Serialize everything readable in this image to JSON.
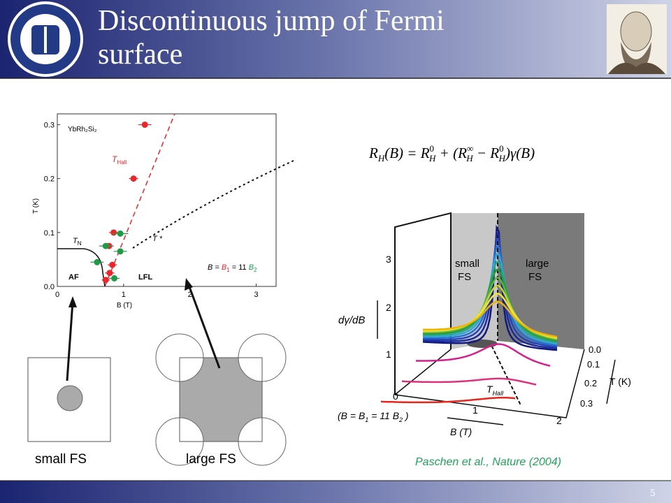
{
  "header": {
    "title": "Discontinuous jump of Fermi surface"
  },
  "phase_diagram": {
    "annotation": "YbRh₂Si₂",
    "t_hall": [
      "T",
      "Hall"
    ],
    "t_n": [
      "T",
      "N"
    ],
    "t_star": "T *",
    "af": "AF",
    "lfl": "LFL",
    "field_relation": [
      "B = ",
      "B",
      "1",
      " = 11 ",
      "B",
      "2"
    ],
    "xlabel": "B (T)",
    "ylabel": "T (K)",
    "xlim": [
      0,
      3.3
    ],
    "ylim": [
      0,
      0.32
    ],
    "xticks": [
      0,
      1,
      2,
      3
    ],
    "yticks": [
      {
        "value": 0,
        "label": "0.0"
      },
      {
        "value": 0.1,
        "label": "0.1"
      },
      {
        "value": 0.2,
        "label": "0.2"
      },
      {
        "value": 0.3,
        "label": "0.3"
      }
    ],
    "series": [
      {
        "color": "#e8262b",
        "x": [
          1.32,
          1.15,
          0.85,
          0.78,
          0.83,
          0.79,
          0.73
        ],
        "y": [
          0.3,
          0.2,
          0.1,
          0.075,
          0.04,
          0.025,
          0.012
        ],
        "xerr": [
          0.1,
          0.07,
          0.07,
          0.07,
          0.07,
          0.07,
          0.06
        ]
      },
      {
        "color": "#1e9a48",
        "x": [
          0.95,
          0.73,
          0.95,
          0.6,
          0.86
        ],
        "y": [
          0.098,
          0.075,
          0.065,
          0.045,
          0.015
        ],
        "xerr": [
          0.12,
          0.1,
          0.1,
          0.1,
          0.08
        ]
      }
    ]
  },
  "formula": [
    "R",
    "H",
    "(B) = R",
    "0",
    "H",
    " + (R",
    "∞",
    "H",
    " − R",
    "0",
    "H",
    ")γ(B)"
  ],
  "plot3d": {
    "small_fs": [
      "small",
      "FS"
    ],
    "large_fs": [
      "large",
      "FS"
    ],
    "zlabel": "dγ/dB",
    "zticks": [
      "0",
      "1",
      "2",
      "3"
    ],
    "bticks": [
      "1",
      "2"
    ],
    "tticks": [
      "0.0",
      "0.1",
      "0.2",
      "0.3"
    ],
    "tlabel": "T (K)",
    "blabel": "B (T)",
    "t_hall": [
      "T",
      "Hall"
    ],
    "field_relation": [
      "(B = B",
      "1",
      " = 11 B",
      "2",
      " )"
    ]
  },
  "fs_labels": [
    "small FS",
    "large FS"
  ],
  "citation": "Paschen et al., Nature (2004)",
  "page_number": "5"
}
